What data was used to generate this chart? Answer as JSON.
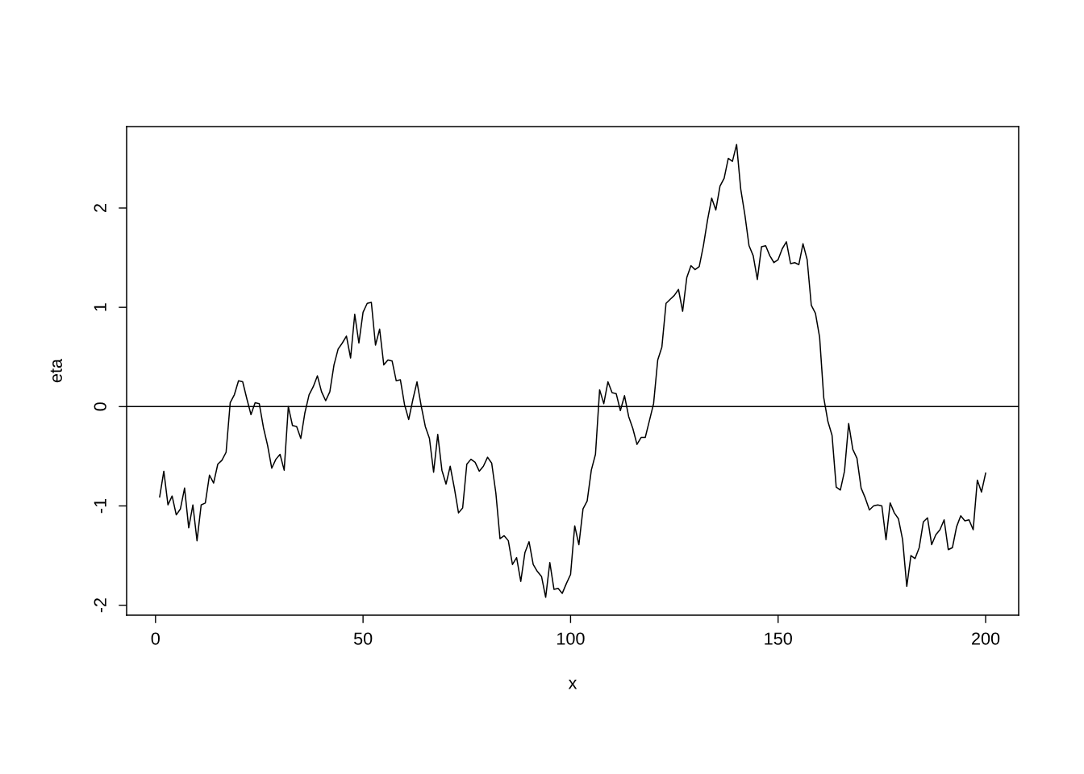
{
  "chart_data": {
    "type": "line",
    "xlabel": "x",
    "ylabel": "eta",
    "x": [
      1,
      2,
      3,
      4,
      5,
      6,
      7,
      8,
      9,
      10,
      11,
      12,
      13,
      14,
      15,
      16,
      17,
      18,
      19,
      20,
      21,
      22,
      23,
      24,
      25,
      26,
      27,
      28,
      29,
      30,
      31,
      32,
      33,
      34,
      35,
      36,
      37,
      38,
      39,
      40,
      41,
      42,
      43,
      44,
      45,
      46,
      47,
      48,
      49,
      50,
      51,
      52,
      53,
      54,
      55,
      56,
      57,
      58,
      59,
      60,
      61,
      62,
      63,
      64,
      65,
      66,
      67,
      68,
      69,
      70,
      71,
      72,
      73,
      74,
      75,
      76,
      77,
      78,
      79,
      80,
      81,
      82,
      83,
      84,
      85,
      86,
      87,
      88,
      89,
      90,
      91,
      92,
      93,
      94,
      95,
      96,
      97,
      98,
      99,
      100,
      101,
      102,
      103,
      104,
      105,
      106,
      107,
      108,
      109,
      110,
      111,
      112,
      113,
      114,
      115,
      116,
      117,
      118,
      119,
      120,
      121,
      122,
      123,
      124,
      125,
      126,
      127,
      128,
      129,
      130,
      131,
      132,
      133,
      134,
      135,
      136,
      137,
      138,
      139,
      140,
      141,
      142,
      143,
      144,
      145,
      146,
      147,
      148,
      149,
      150,
      151,
      152,
      153,
      154,
      155,
      156,
      157,
      158,
      159,
      160,
      161,
      162,
      163,
      164,
      165,
      166,
      167,
      168,
      169,
      170,
      171,
      172,
      173,
      174,
      175,
      176,
      177,
      178,
      179,
      180,
      181,
      182,
      183,
      184,
      185,
      186,
      187,
      188,
      189,
      190,
      191,
      192,
      193,
      194,
      195,
      196,
      197,
      198,
      199,
      200
    ],
    "values": [
      -0.91,
      -0.65,
      -0.99,
      -0.9,
      -1.09,
      -1.03,
      -0.82,
      -1.22,
      -0.99,
      -1.35,
      -0.99,
      -0.97,
      -0.69,
      -0.77,
      -0.58,
      -0.54,
      -0.46,
      0.04,
      0.12,
      0.26,
      0.25,
      0.08,
      -0.08,
      0.04,
      0.03,
      -0.21,
      -0.39,
      -0.62,
      -0.53,
      -0.48,
      -0.64,
      0.0,
      -0.19,
      -0.2,
      -0.32,
      -0.06,
      0.12,
      0.2,
      0.31,
      0.15,
      0.06,
      0.15,
      0.42,
      0.58,
      0.64,
      0.71,
      0.49,
      0.93,
      0.64,
      0.95,
      1.04,
      1.05,
      0.62,
      0.78,
      0.42,
      0.47,
      0.46,
      0.26,
      0.27,
      0.02,
      -0.13,
      0.07,
      0.25,
      0.01,
      -0.2,
      -0.32,
      -0.66,
      -0.28,
      -0.64,
      -0.78,
      -0.6,
      -0.82,
      -1.07,
      -1.02,
      -0.58,
      -0.53,
      -0.56,
      -0.65,
      -0.6,
      -0.51,
      -0.57,
      -0.87,
      -1.33,
      -1.3,
      -1.35,
      -1.59,
      -1.52,
      -1.76,
      -1.47,
      -1.36,
      -1.59,
      -1.66,
      -1.71,
      -1.92,
      -1.57,
      -1.84,
      -1.83,
      -1.88,
      -1.78,
      -1.69,
      -1.2,
      -1.39,
      -1.03,
      -0.95,
      -0.64,
      -0.48,
      0.17,
      0.03,
      0.25,
      0.14,
      0.13,
      -0.04,
      0.11,
      -0.1,
      -0.22,
      -0.38,
      -0.31,
      -0.31,
      -0.14,
      0.03,
      0.47,
      0.6,
      1.04,
      1.08,
      1.12,
      1.18,
      0.96,
      1.3,
      1.42,
      1.38,
      1.41,
      1.62,
      1.88,
      2.1,
      1.98,
      2.22,
      2.3,
      2.5,
      2.47,
      2.64,
      2.19,
      1.93,
      1.62,
      1.52,
      1.28,
      1.61,
      1.62,
      1.52,
      1.45,
      1.48,
      1.59,
      1.66,
      1.44,
      1.45,
      1.43,
      1.64,
      1.48,
      1.02,
      0.94,
      0.7,
      0.09,
      -0.15,
      -0.29,
      -0.81,
      -0.84,
      -0.65,
      -0.17,
      -0.43,
      -0.52,
      -0.82,
      -0.92,
      -1.04,
      -1.0,
      -0.99,
      -1.0,
      -1.34,
      -0.97,
      -1.07,
      -1.13,
      -1.34,
      -1.81,
      -1.5,
      -1.53,
      -1.42,
      -1.16,
      -1.12,
      -1.39,
      -1.29,
      -1.24,
      -1.14,
      -1.44,
      -1.42,
      -1.21,
      -1.1,
      -1.15,
      -1.14,
      -1.24,
      -0.74,
      -0.86,
      -0.67
    ],
    "color": "#000000",
    "xlim": [
      -6.96,
      207.96
    ],
    "xticks": [
      0,
      50,
      100,
      150,
      200
    ],
    "ylim": [
      -2.1,
      2.82
    ],
    "yticks": [
      -2,
      -1,
      0,
      1,
      2
    ],
    "ref_lines": [
      {
        "axis": "y",
        "value": 0,
        "color": "#000000"
      }
    ],
    "grid": false
  }
}
